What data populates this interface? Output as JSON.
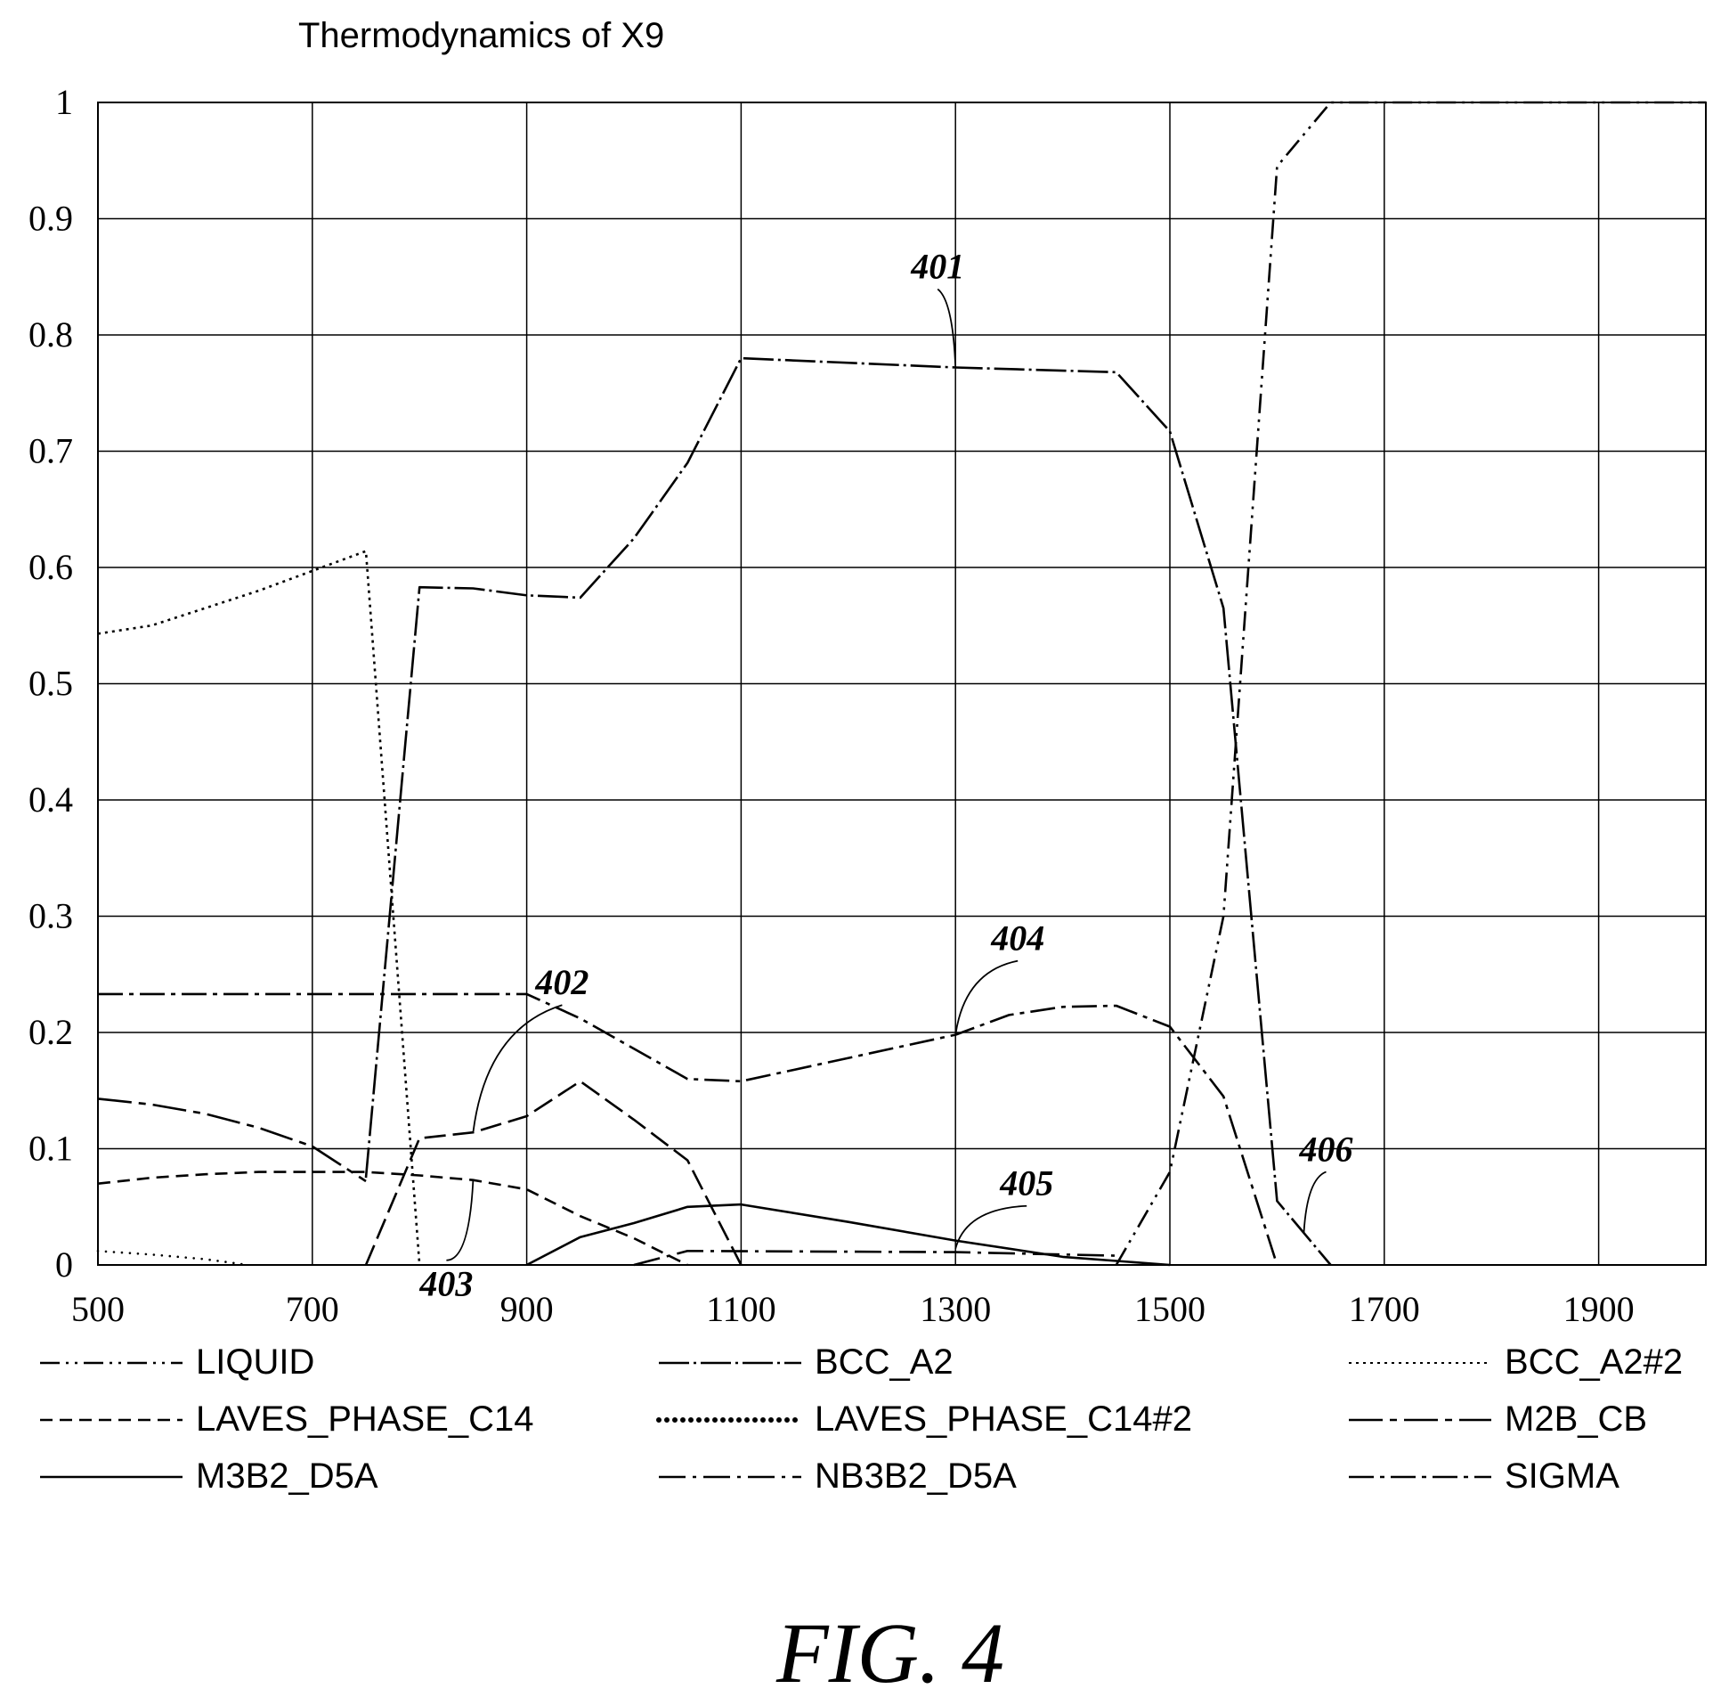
{
  "figure_label": "FIG. 4",
  "chart_data": {
    "type": "line",
    "title": "Thermodynamics of X9",
    "xlabel": "",
    "ylabel": "",
    "xlim": [
      500,
      2000
    ],
    "ylim": [
      0,
      1
    ],
    "x_ticks": [
      "500",
      "700",
      "900",
      "1100",
      "1300",
      "1500",
      "1700",
      "1900"
    ],
    "y_ticks": [
      "0",
      "0.1",
      "0.2",
      "0.3",
      "0.4",
      "0.5",
      "0.6",
      "0.7",
      "0.8",
      "0.9",
      "1"
    ],
    "grid": true,
    "legend_position": "bottom",
    "series": [
      {
        "name": "LIQUID",
        "dash": "22,7,3,7,3,7",
        "points": [
          [
            1450,
            0
          ],
          [
            1500,
            0.08
          ],
          [
            1550,
            0.3
          ],
          [
            1600,
            0.945
          ],
          [
            1650,
            1.0
          ],
          [
            2000,
            1.0
          ]
        ]
      },
      {
        "name": "BCC_A2",
        "dash": "34,5,3,5",
        "points": [
          [
            750,
            0.075
          ],
          [
            800,
            0.583
          ],
          [
            850,
            0.582
          ],
          [
            900,
            0.576
          ],
          [
            950,
            0.574
          ],
          [
            1000,
            0.625
          ],
          [
            1050,
            0.69
          ],
          [
            1100,
            0.78
          ],
          [
            1300,
            0.772
          ],
          [
            1450,
            0.768
          ],
          [
            1500,
            0.717
          ],
          [
            1550,
            0.565
          ],
          [
            1600,
            0.055
          ],
          [
            1650,
            0
          ]
        ]
      },
      {
        "name": "BCC_A2#2",
        "dash": "3,5",
        "points": [
          [
            500,
            0.543
          ],
          [
            550,
            0.55
          ],
          [
            600,
            0.565
          ],
          [
            650,
            0.58
          ],
          [
            700,
            0.597
          ],
          [
            750,
            0.614
          ],
          [
            800,
            0
          ]
        ]
      },
      {
        "name": "LAVES_PHASE_C14",
        "dash": "14,8",
        "points": [
          [
            500,
            0.07
          ],
          [
            550,
            0.075
          ],
          [
            600,
            0.078
          ],
          [
            650,
            0.08
          ],
          [
            700,
            0.08
          ],
          [
            750,
            0.08
          ],
          [
            800,
            0.077
          ],
          [
            850,
            0.073
          ],
          [
            900,
            0.065
          ],
          [
            950,
            0.042
          ],
          [
            1000,
            0.023
          ],
          [
            1050,
            0
          ]
        ]
      },
      {
        "name": "LAVES_PHASE_C14#2",
        "dash": "dots",
        "points": [
          [
            500,
            0.012
          ],
          [
            550,
            0.009
          ],
          [
            600,
            0.005
          ],
          [
            640,
            0
          ]
        ]
      },
      {
        "name": "M2B_CB",
        "dash": "38,8,8,8",
        "points": [
          [
            500,
            0.143
          ],
          [
            550,
            0.138
          ],
          [
            600,
            0.13
          ],
          [
            650,
            0.118
          ],
          [
            700,
            0.102
          ],
          [
            750,
            0.072
          ]
        ]
      },
      {
        "name": "M3B2_D5A",
        "dash": "",
        "points": [
          [
            900,
            0
          ],
          [
            950,
            0.024
          ],
          [
            1000,
            0.036
          ],
          [
            1050,
            0.05
          ],
          [
            1100,
            0.052
          ],
          [
            1200,
            0.037
          ],
          [
            1300,
            0.021
          ],
          [
            1400,
            0.007
          ],
          [
            1500,
            0
          ]
        ]
      },
      {
        "name": "NB3B2_D5A",
        "dash": "30,8,4,8",
        "points": [
          [
            1000,
            0
          ],
          [
            1050,
            0.012
          ],
          [
            1300,
            0.011
          ],
          [
            1450,
            0.008
          ]
        ]
      },
      {
        "name": "SIGMA",
        "dash": "28,7,5,7",
        "points": [
          [
            500,
            0.233
          ],
          [
            900,
            0.233
          ],
          [
            950,
            0.212
          ],
          [
            1050,
            0.16
          ],
          [
            1100,
            0.158
          ],
          [
            1300,
            0.198
          ],
          [
            1350,
            0.215
          ],
          [
            1400,
            0.222
          ],
          [
            1450,
            0.223
          ],
          [
            1500,
            0.205
          ],
          [
            1550,
            0.145
          ],
          [
            1600,
            0
          ]
        ]
      },
      {
        "name": "",
        "dash": "24,8",
        "points": [
          [
            750,
            0
          ],
          [
            800,
            0.109
          ],
          [
            850,
            0.114
          ],
          [
            900,
            0.128
          ],
          [
            950,
            0.158
          ],
          [
            1000,
            0.125
          ],
          [
            1050,
            0.09
          ],
          [
            1100,
            0
          ]
        ]
      }
    ],
    "annotations": [
      {
        "label": "401",
        "x": 1300,
        "y": 0.772
      },
      {
        "label": "402",
        "x": 850,
        "y": 0.114
      },
      {
        "label": "403",
        "x": 850,
        "y": 0.073
      },
      {
        "label": "404",
        "x": 1300,
        "y": 0.198
      },
      {
        "label": "405",
        "x": 1300,
        "y": 0.014
      },
      {
        "label": "406",
        "x": 1625,
        "y": 0.028
      }
    ]
  }
}
